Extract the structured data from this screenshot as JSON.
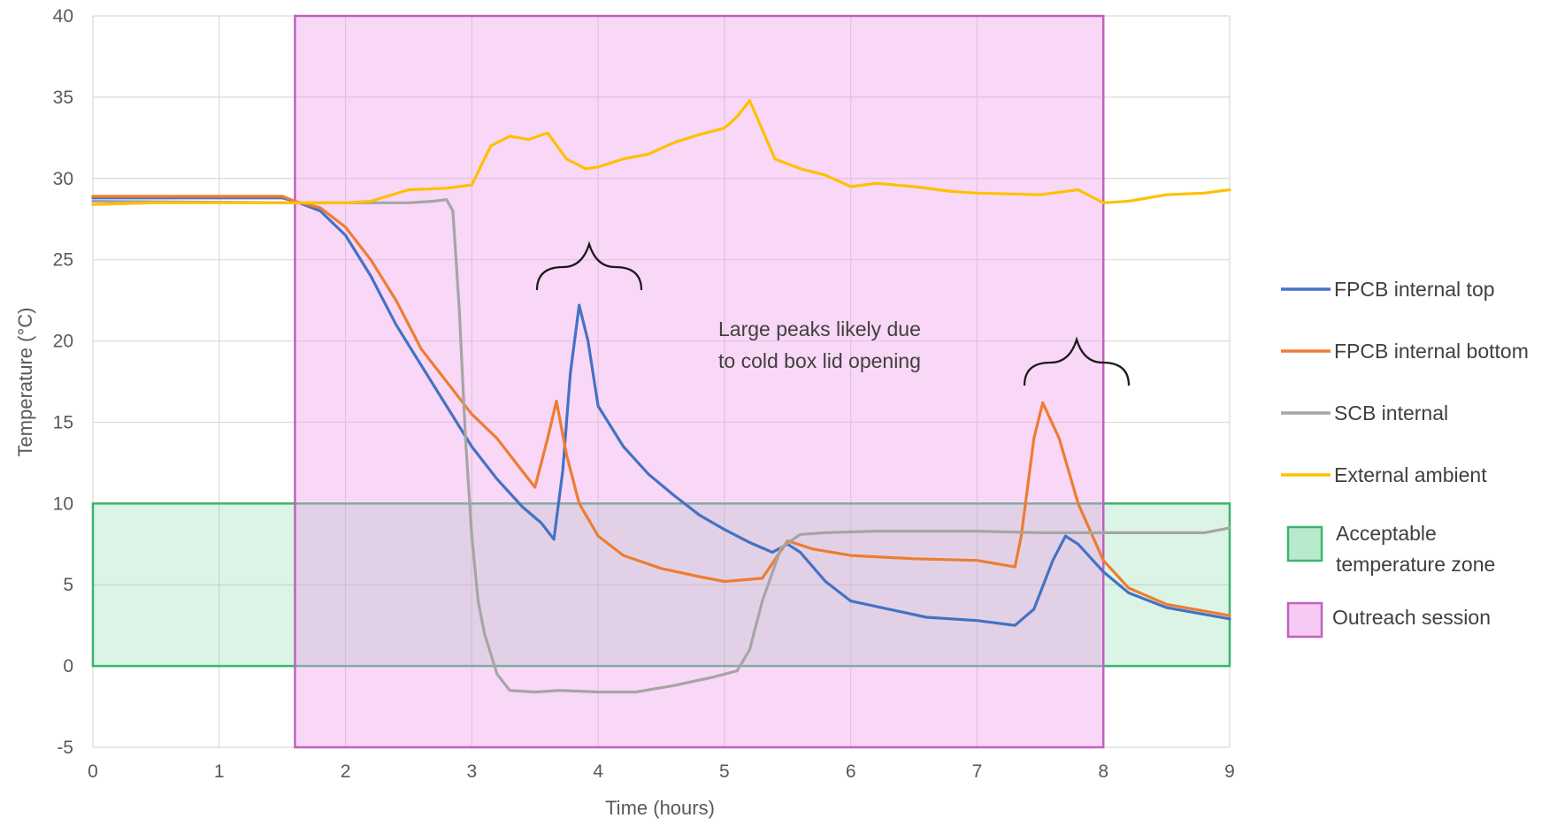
{
  "chart_data": {
    "type": "line",
    "xlabel": "Time (hours)",
    "ylabel": "Temperature (°C)",
    "xlim": [
      0,
      9
    ],
    "ylim": [
      -5,
      40
    ],
    "x_ticks": [
      0,
      1,
      2,
      3,
      4,
      5,
      6,
      7,
      8,
      9
    ],
    "y_ticks": [
      -5,
      0,
      5,
      10,
      15,
      20,
      25,
      30,
      35,
      40
    ],
    "grid": true,
    "legend_position": "right",
    "series": [
      {
        "name": "FPCB internal top",
        "color": "#4472c4",
        "points": [
          [
            0,
            28.8
          ],
          [
            0.5,
            28.8
          ],
          [
            1,
            28.8
          ],
          [
            1.5,
            28.8
          ],
          [
            1.6,
            28.6
          ],
          [
            1.8,
            28.0
          ],
          [
            2.0,
            26.5
          ],
          [
            2.2,
            24.0
          ],
          [
            2.4,
            21.0
          ],
          [
            2.6,
            18.5
          ],
          [
            2.8,
            16.0
          ],
          [
            3.0,
            13.5
          ],
          [
            3.2,
            11.5
          ],
          [
            3.4,
            9.8
          ],
          [
            3.55,
            8.8
          ],
          [
            3.65,
            7.8
          ],
          [
            3.72,
            12.0
          ],
          [
            3.78,
            18.0
          ],
          [
            3.85,
            22.2
          ],
          [
            3.92,
            20.0
          ],
          [
            4.0,
            16.0
          ],
          [
            4.2,
            13.5
          ],
          [
            4.4,
            11.8
          ],
          [
            4.6,
            10.5
          ],
          [
            4.8,
            9.3
          ],
          [
            5.0,
            8.4
          ],
          [
            5.2,
            7.6
          ],
          [
            5.38,
            7.0
          ],
          [
            5.5,
            7.5
          ],
          [
            5.6,
            7.0
          ],
          [
            5.8,
            5.2
          ],
          [
            6.0,
            4.0
          ],
          [
            6.3,
            3.5
          ],
          [
            6.6,
            3.0
          ],
          [
            7.0,
            2.8
          ],
          [
            7.3,
            2.5
          ],
          [
            7.45,
            3.5
          ],
          [
            7.6,
            6.5
          ],
          [
            7.7,
            8.0
          ],
          [
            7.8,
            7.5
          ],
          [
            8.0,
            5.8
          ],
          [
            8.2,
            4.5
          ],
          [
            8.5,
            3.6
          ],
          [
            9.0,
            2.9
          ]
        ]
      },
      {
        "name": "FPCB internal bottom",
        "color": "#ed7d31",
        "points": [
          [
            0,
            28.9
          ],
          [
            0.5,
            28.9
          ],
          [
            1,
            28.9
          ],
          [
            1.5,
            28.9
          ],
          [
            1.6,
            28.6
          ],
          [
            1.8,
            28.2
          ],
          [
            2.0,
            27.0
          ],
          [
            2.2,
            25.0
          ],
          [
            2.4,
            22.5
          ],
          [
            2.6,
            19.5
          ],
          [
            2.8,
            17.5
          ],
          [
            3.0,
            15.5
          ],
          [
            3.2,
            14.0
          ],
          [
            3.4,
            12.0
          ],
          [
            3.5,
            11.0
          ],
          [
            3.6,
            14.0
          ],
          [
            3.67,
            16.3
          ],
          [
            3.75,
            13.0
          ],
          [
            3.85,
            10.0
          ],
          [
            4.0,
            8.0
          ],
          [
            4.2,
            6.8
          ],
          [
            4.5,
            6.0
          ],
          [
            4.8,
            5.5
          ],
          [
            5.0,
            5.2
          ],
          [
            5.3,
            5.4
          ],
          [
            5.5,
            7.7
          ],
          [
            5.7,
            7.2
          ],
          [
            6.0,
            6.8
          ],
          [
            6.5,
            6.6
          ],
          [
            7.0,
            6.5
          ],
          [
            7.3,
            6.1
          ],
          [
            7.35,
            8.0
          ],
          [
            7.45,
            14.0
          ],
          [
            7.52,
            16.2
          ],
          [
            7.65,
            14.0
          ],
          [
            7.8,
            10.0
          ],
          [
            8.0,
            6.5
          ],
          [
            8.2,
            4.8
          ],
          [
            8.5,
            3.8
          ],
          [
            9.0,
            3.1
          ]
        ]
      },
      {
        "name": "SCB internal",
        "color": "#a5a5a5",
        "points": [
          [
            0,
            28.6
          ],
          [
            1.6,
            28.5
          ],
          [
            2.0,
            28.5
          ],
          [
            2.5,
            28.5
          ],
          [
            2.7,
            28.6
          ],
          [
            2.8,
            28.7
          ],
          [
            2.85,
            28.0
          ],
          [
            2.9,
            22.0
          ],
          [
            2.95,
            14.0
          ],
          [
            3.0,
            8.0
          ],
          [
            3.05,
            4.0
          ],
          [
            3.1,
            2.0
          ],
          [
            3.2,
            -0.5
          ],
          [
            3.3,
            -1.5
          ],
          [
            3.5,
            -1.6
          ],
          [
            3.7,
            -1.5
          ],
          [
            4.0,
            -1.6
          ],
          [
            4.3,
            -1.6
          ],
          [
            4.6,
            -1.2
          ],
          [
            4.9,
            -0.7
          ],
          [
            5.1,
            -0.3
          ],
          [
            5.2,
            1.0
          ],
          [
            5.3,
            4.0
          ],
          [
            5.45,
            7.3
          ],
          [
            5.6,
            8.1
          ],
          [
            5.8,
            8.2
          ],
          [
            6.2,
            8.3
          ],
          [
            7.0,
            8.3
          ],
          [
            7.5,
            8.2
          ],
          [
            8.0,
            8.2
          ],
          [
            8.5,
            8.2
          ],
          [
            8.8,
            8.2
          ],
          [
            9.0,
            8.5
          ]
        ]
      },
      {
        "name": "External ambient",
        "color": "#ffc000",
        "points": [
          [
            0,
            28.4
          ],
          [
            0.5,
            28.5
          ],
          [
            1,
            28.5
          ],
          [
            1.6,
            28.5
          ],
          [
            2.0,
            28.5
          ],
          [
            2.2,
            28.6
          ],
          [
            2.5,
            29.3
          ],
          [
            2.8,
            29.4
          ],
          [
            3.0,
            29.6
          ],
          [
            3.15,
            32.0
          ],
          [
            3.3,
            32.6
          ],
          [
            3.45,
            32.4
          ],
          [
            3.6,
            32.8
          ],
          [
            3.75,
            31.2
          ],
          [
            3.9,
            30.6
          ],
          [
            4.0,
            30.7
          ],
          [
            4.2,
            31.2
          ],
          [
            4.4,
            31.5
          ],
          [
            4.6,
            32.2
          ],
          [
            4.8,
            32.7
          ],
          [
            5.0,
            33.1
          ],
          [
            5.1,
            33.8
          ],
          [
            5.2,
            34.8
          ],
          [
            5.3,
            33.0
          ],
          [
            5.4,
            31.2
          ],
          [
            5.6,
            30.6
          ],
          [
            5.8,
            30.2
          ],
          [
            6.0,
            29.5
          ],
          [
            6.2,
            29.7
          ],
          [
            6.5,
            29.5
          ],
          [
            6.8,
            29.2
          ],
          [
            7.0,
            29.1
          ],
          [
            7.5,
            29.0
          ],
          [
            7.8,
            29.3
          ],
          [
            8.0,
            28.5
          ],
          [
            8.2,
            28.6
          ],
          [
            8.5,
            29.0
          ],
          [
            8.8,
            29.1
          ],
          [
            9.0,
            29.3
          ]
        ]
      }
    ],
    "regions": [
      {
        "name": "Acceptable temperature zone",
        "y_range": [
          0,
          10
        ],
        "x_range": [
          0,
          9
        ],
        "fill": "#7dd9a3",
        "stroke": "#3cb371"
      },
      {
        "name": "Outreach session",
        "x_range": [
          1.6,
          8.0
        ],
        "y_range": [
          -5,
          40
        ],
        "fill": "#ee9ee8",
        "stroke": "#c060c0"
      }
    ],
    "annotations": [
      {
        "text_lines": [
          "Large peaks likely due",
          "to cold box lid opening"
        ]
      }
    ]
  }
}
